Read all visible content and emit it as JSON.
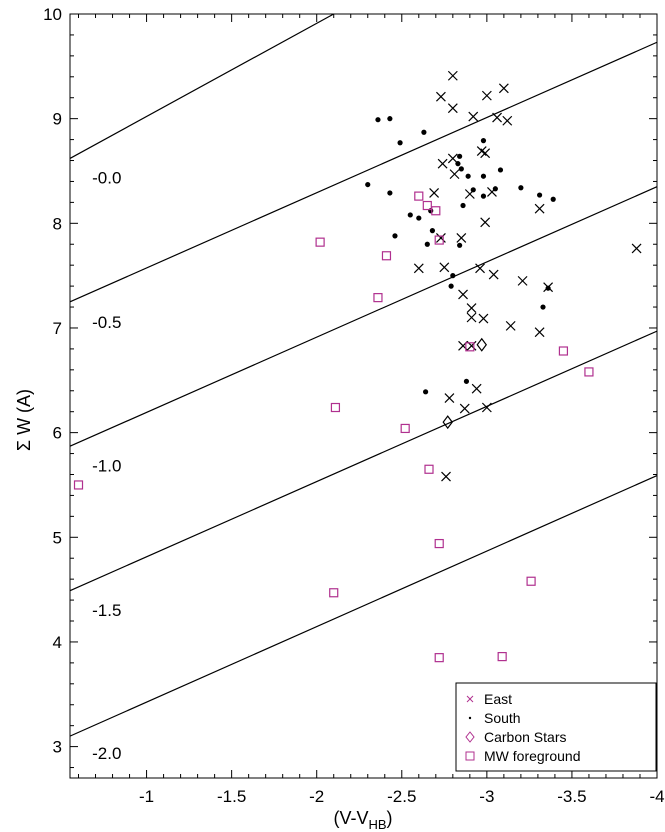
{
  "chart_data": {
    "type": "scatter",
    "xlabel": "(V-V",
    "xlabel_sub": "HB",
    "xlabel_close": ")",
    "ylabel": "Σ W    (A)",
    "xlim": [
      -0.55,
      -4.0
    ],
    "ylim": [
      2.7,
      10.0
    ],
    "x_ticks": [
      -1,
      -1.5,
      -2,
      -2.5,
      -3,
      -3.5,
      -4
    ],
    "x_tick_labels": [
      "-1",
      "-1.5",
      "-2",
      "-2.5",
      "-3",
      "-3.5",
      "-4"
    ],
    "y_ticks": [
      3,
      4,
      5,
      6,
      7,
      8,
      9,
      10
    ],
    "y_tick_labels": [
      "3",
      "4",
      "5",
      "6",
      "7",
      "8",
      "9",
      "10"
    ],
    "legend_position": "bottom-right",
    "legend": [
      {
        "name": "East",
        "marker": "x"
      },
      {
        "name": "South",
        "marker": "dot"
      },
      {
        "name": "Carbon Stars",
        "marker": "diamond"
      },
      {
        "name": "MW foreground",
        "marker": "square"
      }
    ],
    "iso_lines": [
      {
        "label": "-0.0",
        "points": [
          [
            -0.55,
            8.62
          ],
          [
            -2.1,
            10.0
          ]
        ]
      },
      {
        "label": "-0.5",
        "points": [
          [
            -0.55,
            7.25
          ],
          [
            -4.0,
            9.73
          ]
        ]
      },
      {
        "label": "-1.0",
        "points": [
          [
            -0.55,
            5.87
          ],
          [
            -4.0,
            8.35
          ]
        ]
      },
      {
        "label": "-1.5",
        "points": [
          [
            -0.55,
            4.49
          ],
          [
            -4.0,
            6.97
          ]
        ]
      },
      {
        "label": "-2.0",
        "points": [
          [
            -0.55,
            3.1
          ],
          [
            -4.0,
            5.59
          ]
        ]
      }
    ],
    "iso_label_positions": [
      [
        -0.68,
        8.38
      ],
      [
        -0.68,
        7.0
      ],
      [
        -0.68,
        5.63
      ],
      [
        -0.68,
        4.25
      ],
      [
        -0.68,
        2.88
      ]
    ],
    "colors": {
      "axis": "#000000",
      "east": "#000000",
      "south": "#000000",
      "carbon": "#000000",
      "mw": "#b0308f"
    },
    "series": [
      {
        "name": "East",
        "marker": "x",
        "points": [
          [
            -2.8,
            9.41
          ],
          [
            -2.73,
            9.21
          ],
          [
            -2.8,
            9.1
          ],
          [
            -3.0,
            9.22
          ],
          [
            -3.1,
            9.29
          ],
          [
            -2.92,
            9.02
          ],
          [
            -3.06,
            9.01
          ],
          [
            -3.12,
            8.98
          ],
          [
            -2.97,
            8.69
          ],
          [
            -2.99,
            8.67
          ],
          [
            -2.8,
            8.62
          ],
          [
            -2.74,
            8.57
          ],
          [
            -2.81,
            8.47
          ],
          [
            -2.69,
            8.29
          ],
          [
            -2.9,
            8.28
          ],
          [
            -3.03,
            8.3
          ],
          [
            -3.31,
            8.14
          ],
          [
            -2.99,
            8.01
          ],
          [
            -2.73,
            7.86
          ],
          [
            -2.85,
            7.86
          ],
          [
            -2.6,
            7.57
          ],
          [
            -2.75,
            7.58
          ],
          [
            -2.96,
            7.57
          ],
          [
            -3.04,
            7.51
          ],
          [
            -3.21,
            7.45
          ],
          [
            -3.36,
            7.39
          ],
          [
            -2.86,
            7.32
          ],
          [
            -2.91,
            7.19
          ],
          [
            -2.91,
            7.1
          ],
          [
            -2.98,
            7.09
          ],
          [
            -3.14,
            7.02
          ],
          [
            -3.31,
            6.96
          ],
          [
            -2.86,
            6.83
          ],
          [
            -2.91,
            6.83
          ],
          [
            -2.78,
            6.33
          ],
          [
            -2.94,
            6.42
          ],
          [
            -2.87,
            6.23
          ],
          [
            -3.0,
            6.24
          ],
          [
            -2.76,
            5.58
          ],
          [
            -3.88,
            7.76
          ]
        ]
      },
      {
        "name": "South",
        "marker": "dot",
        "points": [
          [
            -2.36,
            8.99
          ],
          [
            -2.43,
            9.0
          ],
          [
            -2.63,
            8.87
          ],
          [
            -2.49,
            8.77
          ],
          [
            -2.84,
            8.64
          ],
          [
            -2.98,
            8.79
          ],
          [
            -2.83,
            8.57
          ],
          [
            -2.85,
            8.52
          ],
          [
            -2.89,
            8.45
          ],
          [
            -2.98,
            8.45
          ],
          [
            -3.08,
            8.51
          ],
          [
            -2.3,
            8.37
          ],
          [
            -2.43,
            8.29
          ],
          [
            -2.92,
            8.32
          ],
          [
            -3.05,
            8.33
          ],
          [
            -3.2,
            8.34
          ],
          [
            -3.31,
            8.27
          ],
          [
            -3.39,
            8.23
          ],
          [
            -2.98,
            8.26
          ],
          [
            -2.86,
            8.17
          ],
          [
            -2.67,
            8.12
          ],
          [
            -2.55,
            8.08
          ],
          [
            -2.6,
            8.05
          ],
          [
            -2.68,
            7.93
          ],
          [
            -2.46,
            7.88
          ],
          [
            -2.65,
            7.8
          ],
          [
            -2.84,
            7.79
          ],
          [
            -2.8,
            7.5
          ],
          [
            -2.79,
            7.4
          ],
          [
            -3.36,
            7.38
          ],
          [
            -3.33,
            7.2
          ],
          [
            -2.64,
            6.39
          ],
          [
            -2.88,
            6.49
          ]
        ]
      },
      {
        "name": "Carbon Stars",
        "marker": "diamond",
        "points": [
          [
            -2.97,
            6.84
          ],
          [
            -2.77,
            6.1
          ]
        ]
      },
      {
        "name": "MW foreground",
        "marker": "square",
        "points": [
          [
            -0.6,
            5.5
          ],
          [
            -2.02,
            7.82
          ],
          [
            -2.41,
            7.69
          ],
          [
            -2.36,
            7.29
          ],
          [
            -2.6,
            8.26
          ],
          [
            -2.65,
            8.17
          ],
          [
            -2.7,
            8.12
          ],
          [
            -2.72,
            7.84
          ],
          [
            -2.11,
            6.24
          ],
          [
            -2.52,
            6.04
          ],
          [
            -2.66,
            5.65
          ],
          [
            -2.9,
            6.82
          ],
          [
            -3.45,
            6.78
          ],
          [
            -3.6,
            6.58
          ],
          [
            -2.72,
            4.94
          ],
          [
            -2.1,
            4.47
          ],
          [
            -3.26,
            4.58
          ],
          [
            -2.72,
            3.85
          ],
          [
            -3.09,
            3.86
          ]
        ]
      }
    ]
  }
}
